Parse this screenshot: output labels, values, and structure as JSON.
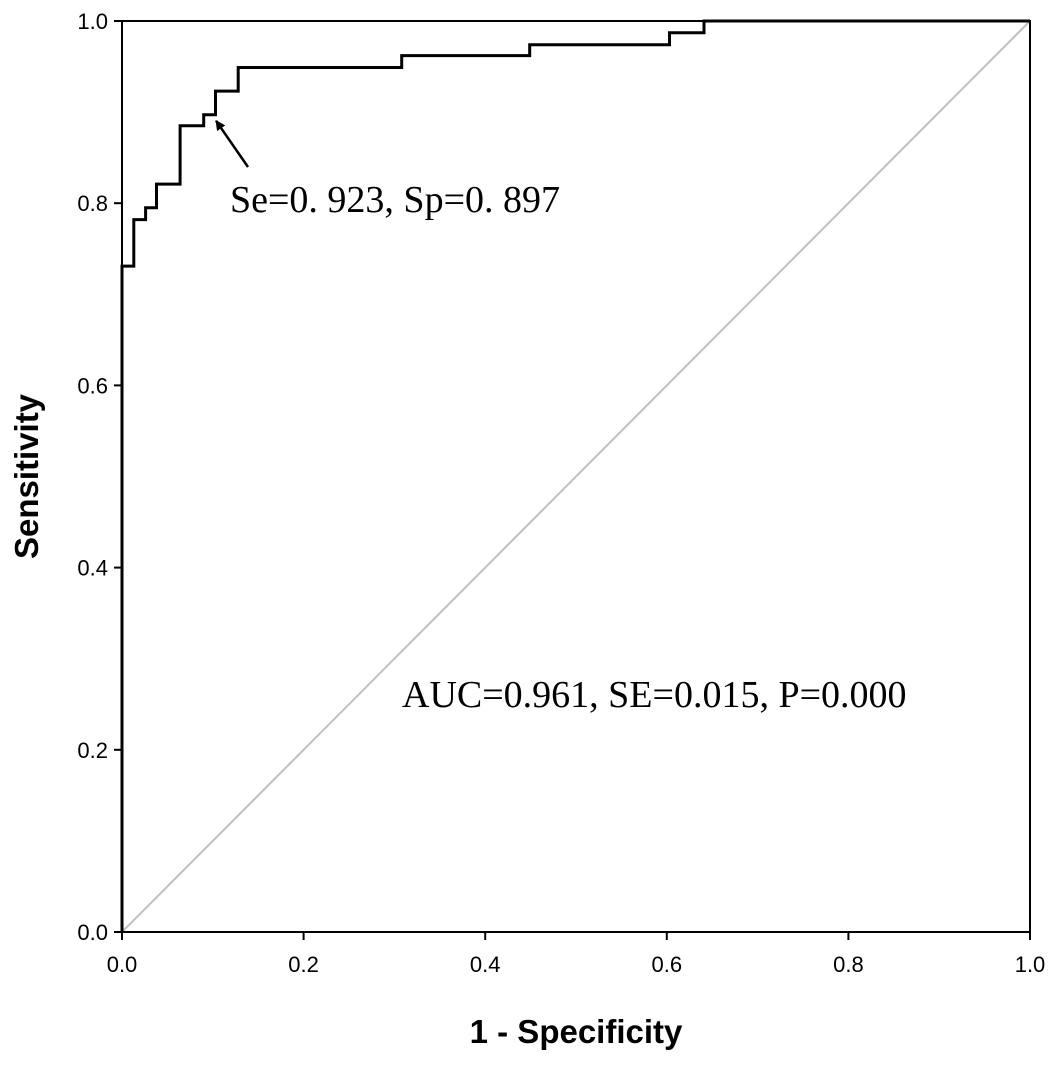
{
  "chart_data": {
    "type": "line",
    "title": "",
    "xlabel": "1 - Specificity",
    "ylabel": "Sensitivity",
    "xlim": [
      0.0,
      1.0
    ],
    "ylim": [
      0.0,
      1.0
    ],
    "x_ticks": [
      "0.0",
      "0.2",
      "0.4",
      "0.6",
      "0.8",
      "1.0"
    ],
    "y_ticks": [
      "0.0",
      "0.2",
      "0.4",
      "0.6",
      "0.8",
      "1.0"
    ],
    "grid": false,
    "legend": "none",
    "series": [
      {
        "style": "step",
        "color": "#000000",
        "points": [
          [
            0.0,
            0.0
          ],
          [
            0.0,
            0.731
          ],
          [
            0.013,
            0.731
          ],
          [
            0.013,
            0.782
          ],
          [
            0.026,
            0.782
          ],
          [
            0.026,
            0.795
          ],
          [
            0.038,
            0.795
          ],
          [
            0.038,
            0.821
          ],
          [
            0.064,
            0.821
          ],
          [
            0.064,
            0.885
          ],
          [
            0.09,
            0.885
          ],
          [
            0.09,
            0.897
          ],
          [
            0.103,
            0.897
          ],
          [
            0.103,
            0.923
          ],
          [
            0.128,
            0.923
          ],
          [
            0.128,
            0.949
          ],
          [
            0.308,
            0.949
          ],
          [
            0.308,
            0.962
          ],
          [
            0.449,
            0.962
          ],
          [
            0.449,
            0.974
          ],
          [
            0.603,
            0.974
          ],
          [
            0.603,
            0.987
          ],
          [
            0.641,
            0.987
          ],
          [
            0.641,
            1.0
          ],
          [
            1.0,
            1.0
          ]
        ]
      },
      {
        "style": "reference",
        "color": "#c0c0c0",
        "points": [
          [
            0.0,
            0.0
          ],
          [
            1.0,
            1.0
          ]
        ]
      }
    ],
    "annotations": [
      {
        "text": "Se=0. 923, Sp=0. 897",
        "point": [
          0.097,
          0.897
        ],
        "arrow": true
      },
      {
        "text": "AUC=0.961, SE=0.015, P=0.000",
        "arrow": false
      }
    ]
  }
}
